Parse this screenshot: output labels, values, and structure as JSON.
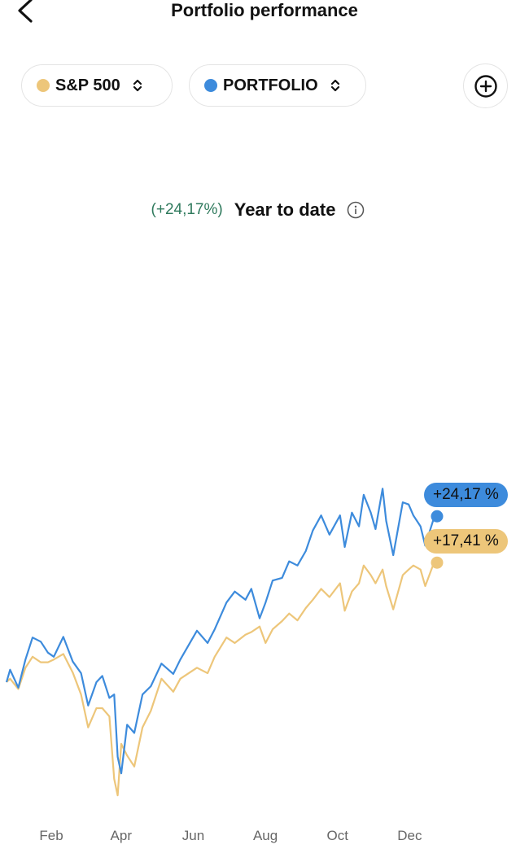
{
  "header": {
    "title": "Portfolio performance",
    "back_icon": "chevron-left-icon"
  },
  "selectors": [
    {
      "label": "S&P 500",
      "color": "#EDC67A",
      "icon": "chevron-up-down-icon"
    },
    {
      "label": "PORTFOLIO",
      "color": "#3D8BDC",
      "icon": "chevron-up-down-icon"
    }
  ],
  "add_icon": "plus-circle-icon",
  "summary": {
    "change": "(+24,17%)",
    "period": "Year to date",
    "info_icon": "info-icon",
    "change_color": "#2F7A5D"
  },
  "chart_data": {
    "type": "line",
    "title": "",
    "xlabel": "",
    "ylabel": "",
    "x_tick_labels": [
      "Feb",
      "Apr",
      "Jun",
      "Aug",
      "Oct",
      "Dec"
    ],
    "x_ticks": [
      "02-01",
      "04-01",
      "06-01",
      "08-01",
      "10-01",
      "12-01"
    ],
    "xlim": [
      "01-01",
      "12-31"
    ],
    "grid": false,
    "legend": "none",
    "x": [
      "01-01",
      "01-04",
      "01-11",
      "01-17",
      "01-23",
      "01-30",
      "02-05",
      "02-10",
      "02-18",
      "02-26",
      "03-05",
      "03-11",
      "03-18",
      "03-23",
      "03-29",
      "04-02",
      "04-05",
      "04-08",
      "04-13",
      "04-19",
      "04-26",
      "05-03",
      "05-12",
      "05-22",
      "05-28",
      "06-11",
      "06-20",
      "06-26",
      "07-06",
      "07-13",
      "07-22",
      "07-27",
      "08-03",
      "08-08",
      "08-14",
      "08-22",
      "08-28",
      "09-04",
      "09-11",
      "09-17",
      "09-24",
      "10-01",
      "10-10",
      "10-14",
      "10-20",
      "10-26",
      "10-30",
      "11-05",
      "11-09",
      "11-15",
      "11-18",
      "11-24",
      "12-02",
      "12-07",
      "12-11",
      "12-17",
      "12-21",
      "12-28",
      "12-31"
    ],
    "series": [
      {
        "name": "PORTFOLIO",
        "color": "#3D8BDC",
        "end_label": "+24,17 %",
        "values": [
          0,
          1.8,
          -0.8,
          3.3,
          6.5,
          5.9,
          4.3,
          3.7,
          6.6,
          3.0,
          1.3,
          -3.4,
          0,
          0.9,
          -2.3,
          -1.8,
          -10.9,
          -13.3,
          -6.2,
          -7.4,
          -1.8,
          -0.6,
          2.7,
          1.2,
          3.3,
          7.5,
          5.7,
          7.7,
          11.6,
          13.2,
          12,
          13.6,
          9.3,
          11.6,
          14.8,
          15.2,
          17.6,
          17,
          19.1,
          22.1,
          24.3,
          21.5,
          24.3,
          19.7,
          24.7,
          22.7,
          27.3,
          24.7,
          22.3,
          28.2,
          23.5,
          18.5,
          26.2,
          25.9,
          24.3,
          22.7,
          19.9,
          23.7,
          24.17
        ]
      },
      {
        "name": "S&P 500",
        "color": "#EDC67A",
        "end_label": "+17,41 %",
        "values": [
          0,
          0.5,
          -1,
          2.1,
          3.7,
          2.9,
          2.9,
          3.3,
          4.1,
          1.4,
          -1.8,
          -6.6,
          -3.8,
          -3.8,
          -5,
          -14.1,
          -16.5,
          -9,
          -10.7,
          -12.3,
          -6.6,
          -4.2,
          0.5,
          -1.4,
          0.5,
          2.1,
          1.3,
          3.7,
          6.5,
          5.7,
          6.9,
          7.3,
          8.1,
          5.7,
          7.7,
          8.9,
          10,
          9,
          10.8,
          12,
          13.6,
          12.4,
          14.4,
          10.4,
          13.2,
          14.4,
          17,
          15.6,
          14.4,
          16.4,
          14,
          10.6,
          15.6,
          16.4,
          17,
          16.4,
          14,
          17.2,
          17.41
        ]
      }
    ]
  }
}
